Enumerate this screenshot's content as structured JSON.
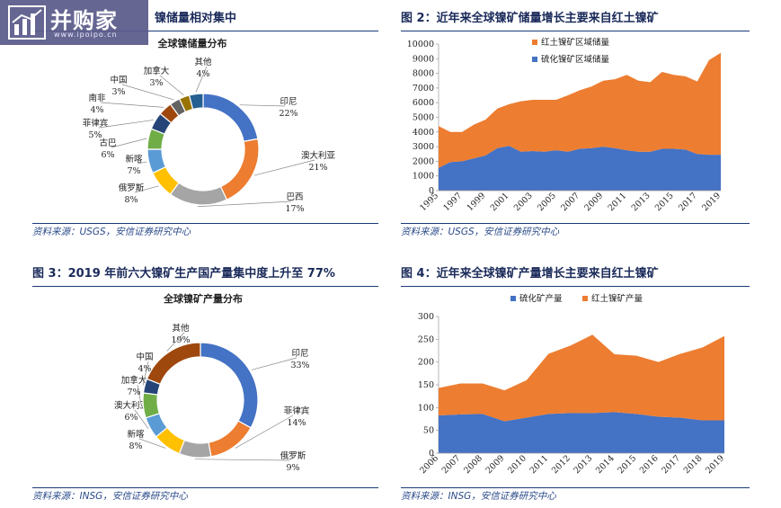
{
  "logo": {
    "name": "并购家",
    "url": "www.ipoipo.cn"
  },
  "panels": [
    {
      "title": "镍储量相对集中",
      "source": "资料来源：USGS，安信证券研究中心"
    },
    {
      "title": "图 2：近年来全球镍矿储量增长主要来自红土镍矿",
      "source": "资料来源：USGS，安信证券研究中心"
    },
    {
      "title": "图 3：2019 年前六大镍矿生产国产量集中度上升至 77%",
      "source": "资料来源：INSG，安信证券研究中心"
    },
    {
      "title": "图 4：近年来全球镍矿产量增长主要来自红土镍矿",
      "source": "资料来源：INSG，安信证券研究中心"
    }
  ],
  "chart_data": [
    {
      "type": "pie",
      "title": "全球镍储量分布",
      "labels": [
        "印尼",
        "澳大利亚",
        "巴西",
        "俄罗斯",
        "新喀",
        "古巴",
        "菲律宾",
        "南非",
        "中国",
        "加拿大",
        "其他"
      ],
      "values": [
        22,
        21,
        17,
        8,
        7,
        6,
        5,
        4,
        3,
        3,
        4
      ],
      "value_labels": [
        "22%",
        "21%",
        "17%",
        "8%",
        "7%",
        "6%",
        "5%",
        "4%",
        "3%",
        "3%",
        "4%"
      ],
      "colors": [
        "#4472c4",
        "#ed7d31",
        "#a5a5a5",
        "#ffc000",
        "#5b9bd5",
        "#70ad47",
        "#264478",
        "#9e480e",
        "#636363",
        "#997300",
        "#255e91"
      ]
    },
    {
      "type": "area",
      "x": [
        1995,
        1996,
        1997,
        1998,
        1999,
        2000,
        2001,
        2002,
        2003,
        2004,
        2005,
        2006,
        2007,
        2008,
        2009,
        2010,
        2011,
        2012,
        2013,
        2014,
        2015,
        2016,
        2017,
        2018,
        2019
      ],
      "xticks": [
        "1995",
        "1997",
        "1999",
        "2001",
        "2003",
        "2005",
        "2007",
        "2009",
        "2011",
        "2013",
        "2015",
        "2017",
        "2019"
      ],
      "ylim": [
        0,
        10000
      ],
      "yticks": [
        "0",
        "1000",
        "2000",
        "3000",
        "4000",
        "5000",
        "6000",
        "7000",
        "8000",
        "9000",
        "10000"
      ],
      "legend_position": "top-left",
      "series": [
        {
          "name": "硫化镍矿区域储量",
          "color": "#4472c4",
          "values": [
            1550,
            1950,
            2000,
            2200,
            2400,
            2900,
            3050,
            2650,
            2700,
            2650,
            2750,
            2650,
            2850,
            2900,
            3000,
            2900,
            2750,
            2650,
            2650,
            2850,
            2850,
            2800,
            2500,
            2450,
            2450
          ]
        },
        {
          "name": "红土镍矿区域储量",
          "color": "#ed7d31",
          "values": [
            2850,
            2050,
            2000,
            2300,
            2450,
            2700,
            2850,
            3450,
            3500,
            3550,
            3450,
            3850,
            4000,
            4200,
            4500,
            4700,
            5150,
            4850,
            4750,
            5250,
            5050,
            5000,
            4950,
            6450,
            6950
          ]
        }
      ]
    },
    {
      "type": "pie",
      "title": "全球镍矿产量分布",
      "labels": [
        "印尼",
        "菲律宾",
        "俄罗斯",
        "新喀",
        "澳大利亚",
        "加拿大",
        "中国",
        "其他"
      ],
      "values": [
        33,
        14,
        9,
        8,
        6,
        7,
        4,
        19
      ],
      "value_labels": [
        "33%",
        "14%",
        "9%",
        "8%",
        "6%",
        "7%",
        "4%",
        "19%"
      ],
      "colors": [
        "#4472c4",
        "#ed7d31",
        "#a5a5a5",
        "#ffc000",
        "#5b9bd5",
        "#70ad47",
        "#264478",
        "#9e480e"
      ]
    },
    {
      "type": "area",
      "x": [
        2006,
        2007,
        2008,
        2009,
        2010,
        2011,
        2012,
        2013,
        2014,
        2015,
        2016,
        2017,
        2018,
        2019
      ],
      "xticks": [
        "2006",
        "2007",
        "2008",
        "2009",
        "2010",
        "2011",
        "2012",
        "2013",
        "2014",
        "2015",
        "2016",
        "2017",
        "2018",
        "2019"
      ],
      "ylim": [
        0,
        300
      ],
      "yticks": [
        "0",
        "50",
        "100",
        "150",
        "200",
        "250",
        "300"
      ],
      "legend_position": "top",
      "series": [
        {
          "name": "硫化矿产量",
          "color": "#4472c4",
          "values": [
            83,
            85,
            86,
            70,
            78,
            86,
            88,
            88,
            90,
            86,
            80,
            78,
            72,
            72
          ]
        },
        {
          "name": "红土镍矿产量",
          "color": "#ed7d31",
          "values": [
            60,
            68,
            67,
            68,
            82,
            132,
            148,
            172,
            127,
            128,
            120,
            140,
            160,
            185
          ]
        }
      ]
    }
  ]
}
